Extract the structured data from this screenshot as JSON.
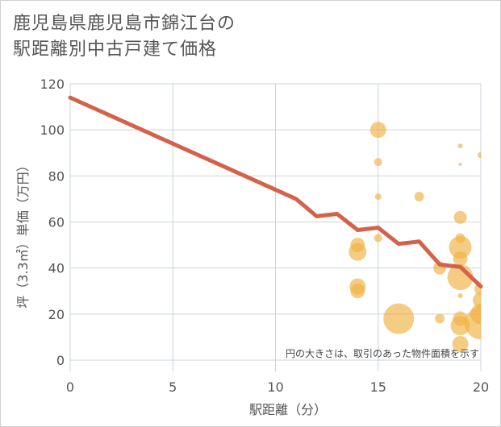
{
  "title": {
    "line1": "鹿児島県鹿児島市錦江台の",
    "line2": "駅距離別中古戸建て価格"
  },
  "colors": {
    "bubble": "#f0b040",
    "line": "#d4624a",
    "grid": "#c8d4dc"
  },
  "chart_data": {
    "type": "scatter",
    "title": "鹿児島県鹿児島市錦江台の駅距離別中古戸建て価格",
    "xlabel": "駅距離（分）",
    "ylabel": "坪（3.3㎡）単価（万円）",
    "xlim": [
      0,
      20
    ],
    "ylim": [
      0,
      120
    ],
    "xticks": [
      0,
      5,
      10,
      15,
      20
    ],
    "yticks": [
      0,
      20,
      40,
      60,
      80,
      100,
      120
    ],
    "grid": true,
    "note": "円の大きさは、取引のあった物件面積を示す",
    "trend_line": {
      "x": [
        0,
        11,
        12,
        13,
        14,
        15,
        16,
        17,
        18,
        19,
        20
      ],
      "y": [
        114,
        70,
        62.5,
        63.5,
        56.5,
        57.5,
        50.5,
        51.5,
        41.5,
        40.5,
        32
      ]
    },
    "bubbles": [
      {
        "x": 15,
        "y": 100,
        "size": 10
      },
      {
        "x": 15,
        "y": 86,
        "size": 5
      },
      {
        "x": 15,
        "y": 71,
        "size": 4
      },
      {
        "x": 15,
        "y": 53,
        "size": 5
      },
      {
        "x": 14,
        "y": 50,
        "size": 9
      },
      {
        "x": 14,
        "y": 47,
        "size": 11
      },
      {
        "x": 14,
        "y": 32,
        "size": 10
      },
      {
        "x": 14,
        "y": 30,
        "size": 9
      },
      {
        "x": 16,
        "y": 18,
        "size": 19
      },
      {
        "x": 17,
        "y": 71,
        "size": 6
      },
      {
        "x": 18,
        "y": 40,
        "size": 8
      },
      {
        "x": 18,
        "y": 18,
        "size": 6
      },
      {
        "x": 19,
        "y": 93,
        "size": 3
      },
      {
        "x": 19,
        "y": 85,
        "size": 2
      },
      {
        "x": 19,
        "y": 62,
        "size": 8
      },
      {
        "x": 19,
        "y": 53,
        "size": 6
      },
      {
        "x": 19,
        "y": 49,
        "size": 14
      },
      {
        "x": 19,
        "y": 44,
        "size": 9
      },
      {
        "x": 19,
        "y": 36,
        "size": 16
      },
      {
        "x": 19,
        "y": 28,
        "size": 3
      },
      {
        "x": 19,
        "y": 18,
        "size": 9
      },
      {
        "x": 19,
        "y": 15,
        "size": 12
      },
      {
        "x": 19,
        "y": 7,
        "size": 10
      },
      {
        "x": 20,
        "y": 89,
        "size": 4
      },
      {
        "x": 20,
        "y": 31,
        "size": 8
      },
      {
        "x": 20,
        "y": 26,
        "size": 10
      },
      {
        "x": 20,
        "y": 20,
        "size": 13
      },
      {
        "x": 20,
        "y": 16,
        "size": 20
      }
    ]
  }
}
